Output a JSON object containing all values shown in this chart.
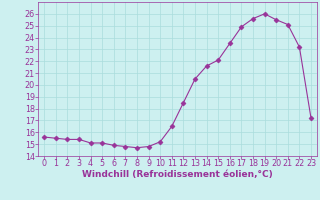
{
  "x": [
    0,
    1,
    2,
    3,
    4,
    5,
    6,
    7,
    8,
    9,
    10,
    11,
    12,
    13,
    14,
    15,
    16,
    17,
    18,
    19,
    20,
    21,
    22,
    23
  ],
  "y": [
    15.6,
    15.5,
    15.4,
    15.4,
    15.1,
    15.1,
    14.9,
    14.8,
    14.7,
    14.8,
    15.2,
    16.5,
    18.5,
    20.5,
    21.6,
    22.1,
    23.5,
    24.9,
    25.6,
    26.0,
    25.5,
    25.1,
    23.2,
    17.2
  ],
  "line_color": "#993399",
  "marker": "D",
  "markersize": 2.5,
  "linewidth": 0.8,
  "xlabel": "Windchill (Refroidissement éolien,°C)",
  "xlim": [
    -0.5,
    23.5
  ],
  "ylim": [
    14,
    27
  ],
  "yticks": [
    14,
    15,
    16,
    17,
    18,
    19,
    20,
    21,
    22,
    23,
    24,
    25,
    26
  ],
  "xticks": [
    0,
    1,
    2,
    3,
    4,
    5,
    6,
    7,
    8,
    9,
    10,
    11,
    12,
    13,
    14,
    15,
    16,
    17,
    18,
    19,
    20,
    21,
    22,
    23
  ],
  "background_color": "#cdf0f0",
  "grid_color": "#aadddd",
  "font_color": "#993399",
  "xlabel_fontsize": 6.5,
  "tick_fontsize": 5.8
}
